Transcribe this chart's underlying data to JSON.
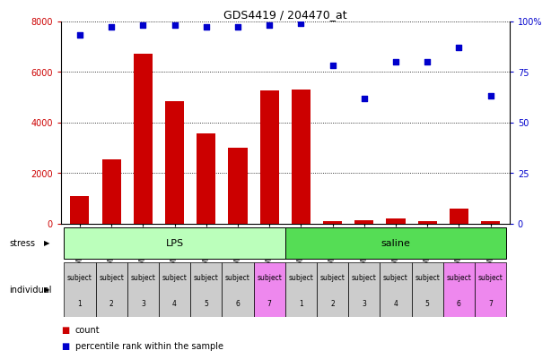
{
  "title": "GDS4419 / 204470_at",
  "samples": [
    "GSM1004102",
    "GSM1004104",
    "GSM1004106",
    "GSM1004108",
    "GSM1004110",
    "GSM1004112",
    "GSM1004114",
    "GSM1004101",
    "GSM1004103",
    "GSM1004105",
    "GSM1004107",
    "GSM1004109",
    "GSM1004111",
    "GSM1004113"
  ],
  "counts": [
    1100,
    2550,
    6700,
    4850,
    3550,
    3000,
    5250,
    5300,
    100,
    130,
    200,
    100,
    600,
    100
  ],
  "percentiles": [
    93,
    97,
    98,
    98,
    97,
    97,
    98,
    99,
    78,
    62,
    80,
    80,
    87,
    63
  ],
  "stress_groups": [
    {
      "label": "LPS",
      "start": 0,
      "end": 7,
      "color": "#bbffbb"
    },
    {
      "label": "saline",
      "start": 7,
      "end": 14,
      "color": "#55dd55"
    }
  ],
  "individuals": [
    {
      "label": "subject\n1",
      "color": "#cccccc"
    },
    {
      "label": "subject\n2",
      "color": "#cccccc"
    },
    {
      "label": "subject\n3",
      "color": "#cccccc"
    },
    {
      "label": "subject\n4",
      "color": "#cccccc"
    },
    {
      "label": "subject\n5",
      "color": "#cccccc"
    },
    {
      "label": "subject\n6",
      "color": "#cccccc"
    },
    {
      "label": "subject\n7",
      "color": "#ee88ee"
    },
    {
      "label": "subject\n1",
      "color": "#cccccc"
    },
    {
      "label": "subject\n2",
      "color": "#cccccc"
    },
    {
      "label": "subject\n3",
      "color": "#cccccc"
    },
    {
      "label": "subject\n4",
      "color": "#cccccc"
    },
    {
      "label": "subject\n5",
      "color": "#cccccc"
    },
    {
      "label": "subject\n6",
      "color": "#ee88ee"
    },
    {
      "label": "subject\n7",
      "color": "#ee88ee"
    }
  ],
  "bar_color": "#cc0000",
  "dot_color": "#0000cc",
  "ylim_left": [
    0,
    8000
  ],
  "ylim_right": [
    0,
    100
  ],
  "yticks_left": [
    0,
    2000,
    4000,
    6000,
    8000
  ],
  "yticks_right": [
    0,
    25,
    50,
    75,
    100
  ],
  "background_color": "#ffffff"
}
